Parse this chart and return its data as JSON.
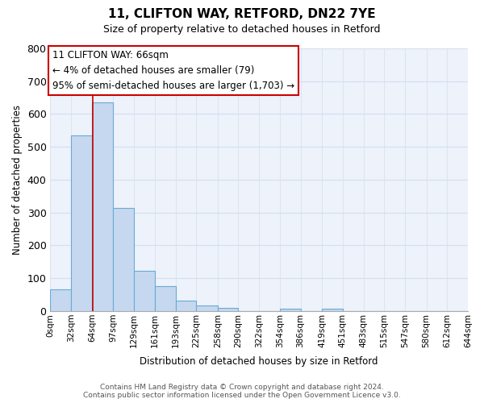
{
  "title": "11, CLIFTON WAY, RETFORD, DN22 7YE",
  "subtitle": "Size of property relative to detached houses in Retford",
  "xlabel": "Distribution of detached houses by size in Retford",
  "ylabel": "Number of detached properties",
  "bin_edges": [
    0,
    32,
    64,
    97,
    129,
    161,
    193,
    225,
    258,
    290,
    322,
    354,
    386,
    419,
    451,
    483,
    515,
    547,
    580,
    612,
    644
  ],
  "bin_labels": [
    "0sqm",
    "32sqm",
    "64sqm",
    "97sqm",
    "129sqm",
    "161sqm",
    "193sqm",
    "225sqm",
    "258sqm",
    "290sqm",
    "322sqm",
    "354sqm",
    "386sqm",
    "419sqm",
    "451sqm",
    "483sqm",
    "515sqm",
    "547sqm",
    "580sqm",
    "612sqm",
    "644sqm"
  ],
  "bar_heights": [
    65,
    535,
    635,
    313,
    122,
    77,
    32,
    18,
    11,
    0,
    0,
    8,
    0,
    8,
    0,
    0,
    0,
    0,
    0,
    0
  ],
  "bar_color": "#c5d8f0",
  "bar_edge_color": "#6aaad4",
  "property_line_x": 66,
  "property_line_color": "#cc0000",
  "annotation_line1": "11 CLIFTON WAY: 66sqm",
  "annotation_line2": "← 4% of detached houses are smaller (79)",
  "annotation_line3": "95% of semi-detached houses are larger (1,703) →",
  "annotation_box_color": "#ffffff",
  "annotation_box_edge_color": "#cc0000",
  "ylim": [
    0,
    800
  ],
  "yticks": [
    0,
    100,
    200,
    300,
    400,
    500,
    600,
    700,
    800
  ],
  "footer_line1": "Contains HM Land Registry data © Crown copyright and database right 2024.",
  "footer_line2": "Contains public sector information licensed under the Open Government Licence v3.0.",
  "grid_color": "#d4dff0",
  "background_color": "#edf2fb",
  "figsize": [
    6.0,
    5.0
  ],
  "dpi": 100
}
